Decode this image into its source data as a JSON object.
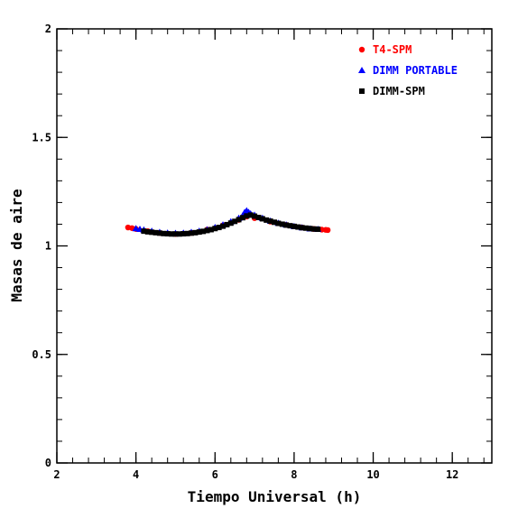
{
  "chart_data": {
    "type": "scatter",
    "xlabel": "Tiempo Universal (h)",
    "ylabel": "Masas de aire",
    "xlim": [
      2,
      13
    ],
    "ylim": [
      0,
      2
    ],
    "xticks": [
      2,
      4,
      6,
      8,
      10,
      12
    ],
    "xtick_labels": [
      "2",
      "4",
      "6",
      "8",
      "10",
      "12"
    ],
    "yticks": [
      0,
      0.5,
      1,
      1.5,
      2
    ],
    "ytick_labels": [
      "0",
      "0.5",
      "1",
      "1.5",
      "2"
    ],
    "x_minor_step": 0.4,
    "y_minor_step": 0.1,
    "grid": false,
    "legend_position": "top-right",
    "series": [
      {
        "name": "T4-SPM",
        "marker": "circle",
        "color": "#ff0000",
        "x": [
          3.8,
          3.9,
          4.0,
          4.3,
          4.6,
          5.0,
          5.4,
          5.8,
          6.2,
          6.6,
          6.8,
          7.0,
          7.4,
          7.8,
          8.2,
          8.5,
          8.7,
          8.8,
          8.85
        ],
        "y": [
          1.085,
          1.082,
          1.078,
          1.068,
          1.06,
          1.055,
          1.06,
          1.075,
          1.095,
          1.12,
          1.135,
          1.128,
          1.112,
          1.097,
          1.085,
          1.078,
          1.075,
          1.074,
          1.073
        ]
      },
      {
        "name": "DIMM PORTABLE",
        "marker": "triangle",
        "color": "#0000ff",
        "x": [
          4.0,
          4.1,
          4.2,
          4.4,
          4.6,
          4.8,
          5.0,
          5.2,
          5.4,
          5.6,
          5.8,
          6.0,
          6.2,
          6.4,
          6.6,
          6.7,
          6.75,
          6.8,
          6.85,
          6.9,
          7.0,
          7.2,
          7.4,
          7.6,
          7.8,
          8.0,
          8.2,
          8.4,
          8.6
        ],
        "y": [
          1.08,
          1.077,
          1.074,
          1.068,
          1.063,
          1.06,
          1.058,
          1.059,
          1.063,
          1.068,
          1.075,
          1.085,
          1.097,
          1.112,
          1.128,
          1.14,
          1.155,
          1.162,
          1.155,
          1.148,
          1.142,
          1.128,
          1.115,
          1.105,
          1.097,
          1.09,
          1.084,
          1.079,
          1.077
        ]
      },
      {
        "name": "DIMM-SPM",
        "marker": "square",
        "color": "#000000",
        "x": [
          4.2,
          4.3,
          4.4,
          4.5,
          4.6,
          4.7,
          4.8,
          4.9,
          5.0,
          5.1,
          5.2,
          5.3,
          5.4,
          5.5,
          5.6,
          5.7,
          5.8,
          5.9,
          6.0,
          6.1,
          6.2,
          6.3,
          6.4,
          6.5,
          6.6,
          6.7,
          6.8,
          6.9,
          7.0,
          7.1,
          7.2,
          7.3,
          7.4,
          7.5,
          7.6,
          7.7,
          7.8,
          7.9,
          8.0,
          8.1,
          8.2,
          8.3,
          8.4,
          8.5,
          8.6
        ],
        "y": [
          1.068,
          1.065,
          1.063,
          1.061,
          1.059,
          1.057,
          1.056,
          1.055,
          1.055,
          1.055,
          1.056,
          1.057,
          1.059,
          1.061,
          1.064,
          1.067,
          1.071,
          1.075,
          1.08,
          1.085,
          1.091,
          1.098,
          1.105,
          1.113,
          1.121,
          1.13,
          1.138,
          1.142,
          1.137,
          1.131,
          1.125,
          1.119,
          1.114,
          1.109,
          1.104,
          1.1,
          1.096,
          1.093,
          1.09,
          1.087,
          1.084,
          1.082,
          1.08,
          1.078,
          1.077
        ]
      }
    ]
  }
}
